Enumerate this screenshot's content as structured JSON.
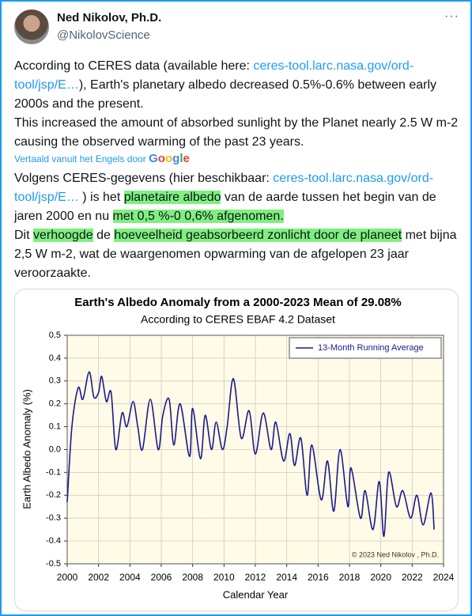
{
  "author": {
    "name": "Ned Nikolov, Ph.D.",
    "handle": "@NikolovScience"
  },
  "menu": "···",
  "tweet": {
    "p1": [
      {
        "text": "According to CERES data (available here: "
      },
      {
        "text": "ceres-tool.larc.nasa.gov/ord-tool/jsp/E…",
        "link": true
      },
      {
        "text": "), Earth's planetary albedo decreased 0.5%-0.6% between early 2000s and the present."
      }
    ],
    "p2": [
      {
        "text": "This increased the amount of absorbed sunlight by the Planet nearly 2.5 W m-2 causing the observed warming of the past 23 years."
      }
    ]
  },
  "translation_note": {
    "text": "Vertaald vanuit het Engels door",
    "provider": "Google"
  },
  "translation": {
    "p1": [
      {
        "text": "Volgens CERES-gegevens (hier beschikbaar: "
      },
      {
        "text": "ceres-tool.larc.nasa.gov/ord-tool/jsp/E…",
        "link": true
      },
      {
        "text": " ) is het "
      },
      {
        "text": "planetaire albedo",
        "highlight": true
      },
      {
        "text": " van de aarde tussen het begin van de jaren 2000 en nu "
      },
      {
        "text": "met 0,5 %-0 0,6% afgenomen.",
        "highlight": true
      }
    ],
    "p2": [
      {
        "text": "Dit "
      },
      {
        "text": "verhoogde",
        "highlight": true
      },
      {
        "text": " de "
      },
      {
        "text": "hoeveelheid geabsorbeerd zonlicht door de planeet",
        "highlight": true
      },
      {
        "text": " met bijna 2,5 W m-2, wat de waargenomen opwarming van de afgelopen 23 jaar veroorzaakte."
      }
    ]
  },
  "chart_data": {
    "type": "line",
    "title": "Earth's Albedo Anomaly from a 2000-2023 Mean of 29.08%",
    "subtitle": "According to CERES EBAF 4.2 Dataset",
    "ylabel": "Earth Albedo Anomaly (%)",
    "xlabel": "Calendar Year",
    "annotation": "© 2023 Ned Nikolov , Ph.D.",
    "x": [
      2000.0,
      2000.3,
      2000.7,
      2001.0,
      2001.4,
      2001.7,
      2002.0,
      2002.2,
      2002.5,
      2002.8,
      2003.1,
      2003.5,
      2003.8,
      2004.2,
      2004.5,
      2004.8,
      2005.3,
      2005.8,
      2006.1,
      2006.5,
      2006.8,
      2007.2,
      2007.8,
      2008.0,
      2008.5,
      2008.8,
      2009.2,
      2009.5,
      2009.9,
      2010.2,
      2010.6,
      2011.1,
      2011.6,
      2012.0,
      2012.5,
      2013.0,
      2013.3,
      2013.8,
      2014.2,
      2014.5,
      2014.9,
      2015.3,
      2015.6,
      2016.2,
      2016.6,
      2017.0,
      2017.4,
      2017.9,
      2018.1,
      2018.7,
      2019.0,
      2019.5,
      2019.9,
      2020.2,
      2020.5,
      2021.0,
      2021.4,
      2021.9,
      2022.3,
      2022.7,
      2023.2,
      2023.4
    ],
    "series": [
      {
        "name": "13-Month Running Average",
        "color": "#1a1a8c",
        "values": [
          -0.23,
          0.1,
          0.27,
          0.22,
          0.34,
          0.23,
          0.25,
          0.32,
          0.21,
          0.25,
          0.0,
          0.16,
          0.1,
          0.21,
          0.1,
          0.0,
          0.22,
          0.0,
          0.15,
          0.22,
          0.02,
          0.2,
          -0.03,
          0.18,
          -0.04,
          0.15,
          0.0,
          0.12,
          0.0,
          0.1,
          0.31,
          0.05,
          0.17,
          -0.02,
          0.16,
          0.0,
          0.12,
          -0.05,
          0.07,
          -0.07,
          0.05,
          -0.2,
          0.02,
          -0.22,
          -0.05,
          -0.27,
          0.0,
          -0.25,
          -0.08,
          -0.3,
          -0.18,
          -0.35,
          -0.14,
          -0.38,
          -0.1,
          -0.25,
          -0.18,
          -0.3,
          -0.2,
          -0.33,
          -0.19,
          -0.35
        ]
      }
    ],
    "xlim": [
      2000,
      2024
    ],
    "xticks": [
      2000,
      2002,
      2004,
      2006,
      2008,
      2010,
      2012,
      2014,
      2016,
      2018,
      2020,
      2022,
      2024
    ],
    "ylim": [
      -0.5,
      0.5
    ],
    "yticks": [
      -0.5,
      -0.4,
      -0.3,
      -0.2,
      -0.1,
      {
        "value": 0,
        "label": "0.0"
      },
      0.1,
      0.2,
      0.3,
      0.4,
      0.5
    ],
    "legend": "top-right",
    "plot_background": "#fffbe6"
  }
}
